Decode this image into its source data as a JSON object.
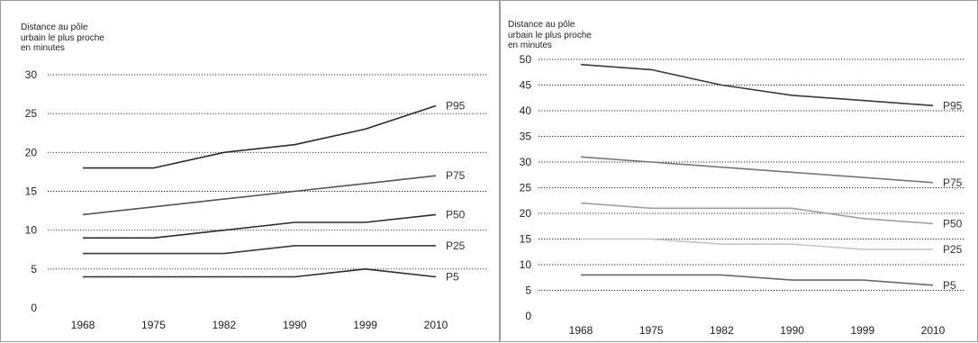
{
  "chart_data": [
    {
      "type": "line",
      "title": "",
      "ylabel_lines": [
        "Distance au pôle",
        "urbain le plus proche",
        "en minutes"
      ],
      "xlabel": "",
      "categories": [
        "1968",
        "1975",
        "1982",
        "1990",
        "1999",
        "2010"
      ],
      "yticks": [
        "0",
        "5",
        "10",
        "15",
        "20",
        "25",
        "30"
      ],
      "ylim": [
        0,
        30
      ],
      "grid": "horizontal-dotted",
      "legend": "inline-right",
      "series": [
        {
          "name": "P95",
          "values": [
            18,
            18,
            20,
            21,
            23,
            26
          ],
          "color": "#2b2b2b"
        },
        {
          "name": "P75",
          "values": [
            12,
            13,
            14,
            15,
            16,
            17
          ],
          "color": "#555555"
        },
        {
          "name": "P50",
          "values": [
            9,
            9,
            10,
            11,
            11,
            12
          ],
          "color": "#2b2b2b"
        },
        {
          "name": "P25",
          "values": [
            7,
            7,
            7,
            8,
            8,
            8
          ],
          "color": "#3a3a3a"
        },
        {
          "name": "P5",
          "values": [
            4,
            4,
            4,
            4,
            5,
            4
          ],
          "color": "#2b2b2b"
        }
      ]
    },
    {
      "type": "line",
      "title": "",
      "ylabel_lines": [
        "Distance au pôle",
        "urbain le plus proche",
        "en minutes"
      ],
      "xlabel": "",
      "categories": [
        "1968",
        "1975",
        "1982",
        "1990",
        "1999",
        "2010"
      ],
      "yticks": [
        "0",
        "5",
        "10",
        "15",
        "20",
        "25",
        "30",
        "35",
        "40",
        "45",
        "50"
      ],
      "ylim": [
        0,
        50
      ],
      "grid": "horizontal-dotted",
      "legend": "inline-right",
      "series": [
        {
          "name": "P95",
          "values": [
            49,
            48,
            45,
            43,
            42,
            41
          ],
          "color": "#3a3a3a"
        },
        {
          "name": "P75",
          "values": [
            31,
            30,
            29,
            28,
            27,
            26
          ],
          "color": "#777777"
        },
        {
          "name": "P50",
          "values": [
            22,
            21,
            21,
            21,
            19,
            18
          ],
          "color": "#a0a0a0"
        },
        {
          "name": "P25",
          "values": [
            15,
            15,
            14,
            14,
            13,
            13
          ],
          "color": "#c4c4c4"
        },
        {
          "name": "P5",
          "values": [
            8,
            8,
            8,
            7,
            7,
            6
          ],
          "color": "#6a6a6a"
        }
      ]
    }
  ]
}
